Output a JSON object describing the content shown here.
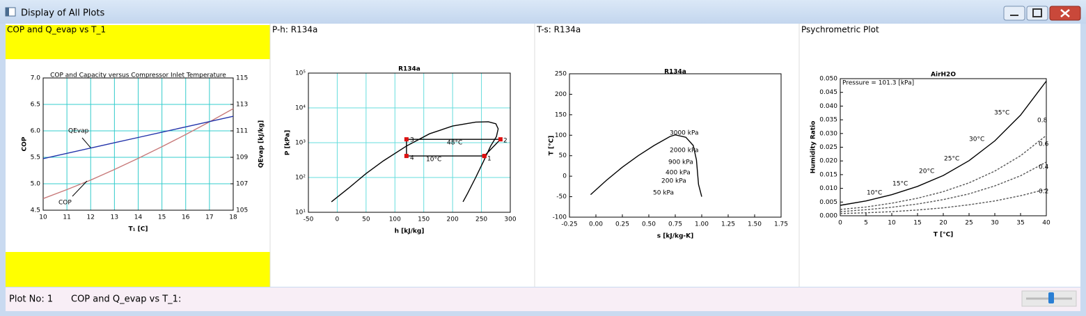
{
  "window": {
    "title": "Display of All Plots"
  },
  "panels": [
    "COP and Q_evap vs T_1",
    "P-h: R134a",
    "T-s: R134a",
    "Psychrometric Plot"
  ],
  "status": {
    "plot_no": "Plot No: 1",
    "plot_name": "COP and Q_evap vs T_1:"
  },
  "chart_data": [
    {
      "type": "line",
      "title": "COP and Capacity versus Compressor Inlet Temperature",
      "x_label": "T₁ [C]",
      "y_label": "COP",
      "y2_label": "QEvap [kJ/kg]",
      "x": [
        10,
        11,
        12,
        13,
        14,
        15,
        16,
        17,
        18
      ],
      "xlim": [
        10,
        18
      ],
      "xticks": [
        10,
        11,
        12,
        13,
        14,
        15,
        16,
        17,
        18
      ],
      "ylim": [
        4.5,
        7.0
      ],
      "yticks": [
        4.5,
        {
          "value": 5,
          "label": "5.0"
        },
        5.5,
        {
          "value": 6,
          "label": "6.0"
        },
        6.5,
        {
          "value": 7,
          "label": "7.0"
        }
      ],
      "y2lim": [
        105,
        115
      ],
      "y2ticks": [
        105,
        107,
        109,
        111,
        113,
        115
      ],
      "grid": true,
      "grid_color": "#33cccc",
      "series": [
        {
          "color": "#c87a7a",
          "values": [
            4.72,
            4.89,
            5.07,
            5.27,
            5.48,
            5.7,
            5.93,
            6.17,
            6.42
          ]
        },
        {
          "color": "#2233aa",
          "axis": "y2",
          "values": [
            108.9,
            109.3,
            109.7,
            110.1,
            110.5,
            110.9,
            111.3,
            111.7,
            112.1
          ]
        }
      ],
      "annotations": [
        "QEvap",
        "COP"
      ]
    },
    {
      "type": "line",
      "title": "R134a",
      "x_label": "h [kJ/kg]",
      "y_label": "P [kPa]",
      "xlim": [
        -50,
        300
      ],
      "xticks": [
        -50,
        0,
        50,
        100,
        150,
        200,
        250,
        300
      ],
      "ylim": [
        10,
        100000
      ],
      "log_y": true,
      "yticks": [
        {
          "value": 10,
          "label": "10¹"
        },
        {
          "value": 100,
          "label": "10²"
        },
        {
          "value": 1000,
          "label": "10³"
        },
        {
          "value": 10000,
          "label": "10⁴"
        },
        {
          "value": 100000,
          "label": "10⁵"
        }
      ],
      "grid": true,
      "grid_color": "#66dddd",
      "series": [
        {
          "color": "#000000",
          "x": [
            -10,
            20,
            50,
            80,
            120,
            160,
            200,
            240,
            262,
            275,
            279,
            276,
            266,
            254,
            240,
            226,
            218
          ],
          "values": [
            20,
            50,
            130,
            300,
            800,
            1800,
            3000,
            3900,
            4000,
            3500,
            2500,
            1500,
            800,
            300,
            100,
            35,
            20
          ]
        },
        {
          "color": "#000000",
          "markers": true,
          "marker_color": "#dd1111",
          "x": [
            255,
            283,
            120,
            120,
            255
          ],
          "values": [
            415,
            1250,
            1250,
            415,
            415
          ]
        }
      ],
      "annotations": [
        "1",
        "2",
        "3",
        "4",
        "48°C",
        "10°C"
      ]
    },
    {
      "type": "line",
      "title": "R134a",
      "x_label": "s [kJ/kg-K]",
      "y_label": "T [°C]",
      "xlim": [
        -0.25,
        1.75
      ],
      "xticks": [
        -0.25,
        {
          "value": 0,
          "label": "0.00"
        },
        0.25,
        {
          "value": 0.5,
          "label": "0.50"
        },
        0.75,
        {
          "value": 1,
          "label": "1.00"
        },
        1.25,
        {
          "value": 1.5,
          "label": "1.50"
        },
        1.75
      ],
      "ylim": [
        -100,
        250
      ],
      "yticks": [
        -100,
        -50,
        0,
        50,
        100,
        150,
        200,
        250
      ],
      "grid": false,
      "series": [
        {
          "color": "#000000",
          "x": [
            -0.05,
            0.1,
            0.25,
            0.4,
            0.55,
            0.7,
            0.75,
            0.85,
            0.92,
            0.95,
            0.96,
            0.97,
            1.0
          ],
          "values": [
            -45,
            -10,
            22,
            50,
            75,
            97,
            101,
            95,
            75,
            40,
            10,
            -20,
            -50
          ]
        }
      ],
      "annotations": [
        "3000 kPa",
        "2000 kPa",
        "900 kPa",
        "400 kPa",
        "200 kPa",
        "50 kPa"
      ]
    },
    {
      "type": "line",
      "title": "AirH2O",
      "x_label": "T [°C]",
      "y_label": "Humidity Ratio",
      "x": [
        0,
        5,
        10,
        15,
        20,
        25,
        30,
        35,
        40
      ],
      "xlim": [
        0,
        40
      ],
      "xticks": [
        0,
        5,
        10,
        15,
        20,
        25,
        30,
        35,
        40
      ],
      "ylim": [
        0,
        0.05
      ],
      "yticks": [
        {
          "value": 0,
          "label": "0.000"
        },
        0.005,
        {
          "value": 0.01,
          "label": "0.010"
        },
        0.015,
        {
          "value": 0.02,
          "label": "0.020"
        },
        0.025,
        {
          "value": 0.03,
          "label": "0.030"
        },
        0.035,
        {
          "value": 0.04,
          "label": "0.040"
        },
        0.045,
        {
          "value": 0.05,
          "label": "0.050"
        }
      ],
      "grid": false,
      "series": [
        {
          "color": "#000000",
          "values": [
            0.0038,
            0.0054,
            0.0077,
            0.0107,
            0.0147,
            0.0201,
            0.0273,
            0.0367,
            0.0491
          ]
        },
        {
          "color": "#555555",
          "line_style": "dashed",
          "values": [
            0.0023,
            0.0032,
            0.0046,
            0.0064,
            0.0088,
            0.012,
            0.0163,
            0.0219,
            0.0293
          ]
        },
        {
          "color": "#555555",
          "line_style": "dashed",
          "values": [
            0.0015,
            0.0022,
            0.0031,
            0.0043,
            0.0059,
            0.008,
            0.0109,
            0.0146,
            0.0196
          ]
        },
        {
          "color": "#555555",
          "line_style": "dashed",
          "values": [
            0.0008,
            0.0011,
            0.0015,
            0.0021,
            0.0029,
            0.004,
            0.0054,
            0.0073,
            0.0097
          ]
        }
      ],
      "annotations": [
        "Pressure = 101.3 [kPa]",
        "35°C",
        "30°C",
        "25°C",
        "20°C",
        "15°C",
        "10°C",
        "0.8",
        "0.6",
        "0.4",
        "0.2"
      ]
    }
  ]
}
